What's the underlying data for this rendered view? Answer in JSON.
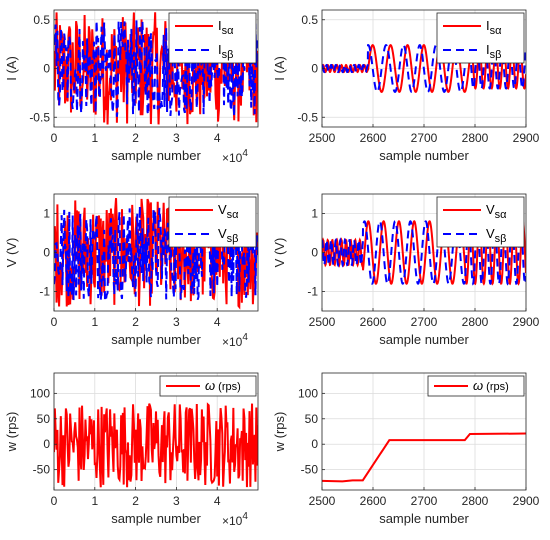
{
  "figure": {
    "exponent_label": "×10",
    "exponent_power": "4"
  },
  "chart_data": [
    {
      "type": "line",
      "xlabel": "sample number",
      "ylabel": "I (A)",
      "xlim": [
        0,
        50000
      ],
      "ylim": [
        -0.6,
        0.6
      ],
      "xticks": [
        0,
        10000,
        20000,
        30000,
        40000
      ],
      "xtick_labels": [
        "0",
        "1",
        "2",
        "3",
        "4"
      ],
      "x_multiplier": "×10^4",
      "yticks": [
        -0.5,
        0,
        0.5
      ],
      "ytick_labels": [
        "-0.5",
        "0",
        "0.5"
      ],
      "grid": true,
      "legend_position": "top-right",
      "signal": "noise",
      "series": [
        {
          "name": "Isα",
          "legend_main": "I",
          "legend_sub": "sα",
          "color": "#ff0000",
          "dash": "solid",
          "amplitude": 0.58
        },
        {
          "name": "Isβ",
          "legend_main": "I",
          "legend_sub": "sβ",
          "color": "#0000ff",
          "dash": "dashed",
          "amplitude": 0.5
        }
      ]
    },
    {
      "type": "line",
      "xlabel": "sample number",
      "ylabel": "I (A)",
      "xlim": [
        2500,
        2900
      ],
      "ylim": [
        -0.6,
        0.6
      ],
      "xticks": [
        2500,
        2600,
        2700,
        2800,
        2900
      ],
      "xtick_labels": [
        "2500",
        "2600",
        "2700",
        "2800",
        "2900"
      ],
      "yticks": [
        -0.5,
        0,
        0.5
      ],
      "ytick_labels": [
        "-0.5",
        "0",
        "0.5"
      ],
      "grid": true,
      "legend_position": "top-right",
      "signal": "sine",
      "series": [
        {
          "name": "Isα",
          "legend_main": "I",
          "legend_sub": "sα",
          "color": "#ff0000",
          "dash": "solid",
          "amplitude": 0.24,
          "phase": 0
        },
        {
          "name": "Isβ",
          "legend_main": "I",
          "legend_sub": "sβ",
          "color": "#0000ff",
          "dash": "dashed",
          "amplitude": 0.24,
          "phase": 1.5708
        }
      ],
      "segments": [
        {
          "x0": 2500,
          "x1": 2590,
          "period": 9,
          "amplitude_scale": 0.15
        },
        {
          "x0": 2590,
          "x1": 2650,
          "period": 35,
          "amplitude_scale": 1.0
        },
        {
          "x0": 2650,
          "x1": 2790,
          "period": 32,
          "amplitude_scale": 1.0
        },
        {
          "x0": 2790,
          "x1": 2900,
          "period": 16,
          "amplitude_scale": 0.85
        }
      ]
    },
    {
      "type": "line",
      "xlabel": "sample number",
      "ylabel": "V (V)",
      "xlim": [
        0,
        50000
      ],
      "ylim": [
        -1.5,
        1.5
      ],
      "xticks": [
        0,
        10000,
        20000,
        30000,
        40000
      ],
      "xtick_labels": [
        "0",
        "1",
        "2",
        "3",
        "4"
      ],
      "x_multiplier": "×10^4",
      "yticks": [
        -1,
        0,
        1
      ],
      "ytick_labels": [
        "-1",
        "0",
        "1"
      ],
      "grid": true,
      "legend_position": "top-right",
      "signal": "noise",
      "series": [
        {
          "name": "Vsα",
          "legend_main": "V",
          "legend_sub": "sα",
          "color": "#ff0000",
          "dash": "solid",
          "amplitude": 1.4
        },
        {
          "name": "Vsβ",
          "legend_main": "V",
          "legend_sub": "sβ",
          "color": "#0000ff",
          "dash": "dashed",
          "amplitude": 1.25
        }
      ]
    },
    {
      "type": "line",
      "xlabel": "sample number",
      "ylabel": "V (V)",
      "xlim": [
        2500,
        2900
      ],
      "ylim": [
        -1.5,
        1.5
      ],
      "xticks": [
        2500,
        2600,
        2700,
        2800,
        2900
      ],
      "xtick_labels": [
        "2500",
        "2600",
        "2700",
        "2800",
        "2900"
      ],
      "yticks": [
        -1,
        0,
        1
      ],
      "ytick_labels": [
        "-1",
        "0",
        "1"
      ],
      "grid": true,
      "legend_position": "top-right",
      "signal": "sine",
      "series": [
        {
          "name": "Vsα",
          "legend_main": "V",
          "legend_sub": "sα",
          "color": "#ff0000",
          "dash": "solid",
          "amplitude": 0.8,
          "phase": 0
        },
        {
          "name": "Vsβ",
          "legend_main": "V",
          "legend_sub": "sβ",
          "color": "#0000ff",
          "dash": "dashed",
          "amplitude": 0.8,
          "phase": 1.5708
        }
      ],
      "segments": [
        {
          "x0": 2500,
          "x1": 2580,
          "period": 9,
          "amplitude_scale": 0.4
        },
        {
          "x0": 2580,
          "x1": 2650,
          "period": 30,
          "amplitude_scale": 1.0
        },
        {
          "x0": 2650,
          "x1": 2780,
          "period": 30,
          "amplitude_scale": 1.0
        },
        {
          "x0": 2780,
          "x1": 2900,
          "period": 17,
          "amplitude_scale": 1.0
        }
      ]
    },
    {
      "type": "line",
      "xlabel": "sample number",
      "ylabel": "w (rps)",
      "xlim": [
        0,
        50000
      ],
      "ylim": [
        -90,
        140
      ],
      "xticks": [
        0,
        10000,
        20000,
        30000,
        40000
      ],
      "xtick_labels": [
        "0",
        "1",
        "2",
        "3",
        "4"
      ],
      "x_multiplier": "×10^4",
      "yticks": [
        -50,
        0,
        50,
        100
      ],
      "ytick_labels": [
        "-50",
        "0",
        "50",
        "100"
      ],
      "grid": true,
      "legend_position": "top-right",
      "signal": "noise",
      "series": [
        {
          "name": "ω (rps)",
          "legend_main": "ω (rps)",
          "legend_sub": "",
          "color": "#ff0000",
          "dash": "solid",
          "amplitude": 85
        }
      ]
    },
    {
      "type": "line",
      "xlabel": "sample number",
      "ylabel": "w (rps)",
      "xlim": [
        2500,
        2900
      ],
      "ylim": [
        -90,
        140
      ],
      "xticks": [
        2500,
        2600,
        2700,
        2800,
        2900
      ],
      "xtick_labels": [
        "2500",
        "2600",
        "2700",
        "2800",
        "2900"
      ],
      "yticks": [
        -50,
        0,
        50,
        100
      ],
      "ytick_labels": [
        "-50",
        "0",
        "50",
        "100"
      ],
      "grid": true,
      "legend_position": "top-right",
      "signal": "polyline",
      "series": [
        {
          "name": "ω (rps)",
          "legend_main": "ω (rps)",
          "legend_sub": "",
          "color": "#ff0000",
          "dash": "solid",
          "x": [
            2500,
            2540,
            2560,
            2580,
            2632,
            2640,
            2780,
            2790,
            2900
          ],
          "y": [
            -72,
            -73,
            -71,
            -71,
            8,
            8,
            8,
            20,
            21
          ]
        }
      ]
    }
  ]
}
